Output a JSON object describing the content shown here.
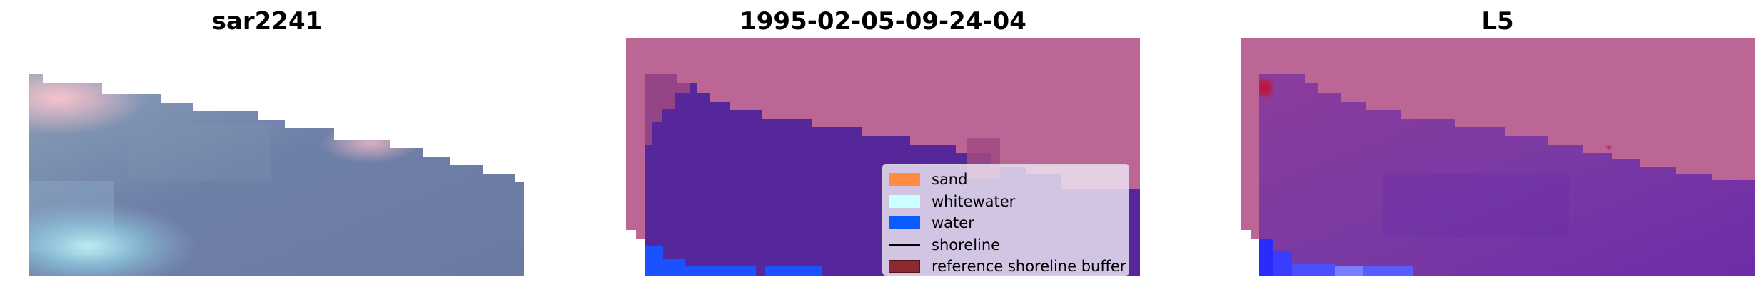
{
  "panels": [
    {
      "id": "rgb",
      "title": "sar2241"
    },
    {
      "id": "classification",
      "title": "1995-02-05-09-24-04"
    },
    {
      "id": "index",
      "title": "L5"
    }
  ],
  "legend": {
    "items": [
      {
        "label": "sand",
        "color": "#ff8c42",
        "kind": "patch"
      },
      {
        "label": "whitewater",
        "color": "#ccffff",
        "kind": "patch"
      },
      {
        "label": "water",
        "color": "#0b5cff",
        "kind": "patch"
      },
      {
        "label": "shoreline",
        "color": "#000000",
        "kind": "line"
      },
      {
        "label": "reference shoreline buffer",
        "color": "#8b2a33",
        "kind": "patch"
      }
    ]
  },
  "colors": {
    "reference_buffer_overlay": "#bb6694",
    "water_class": "#56279a",
    "water_blue": "#1a52ff",
    "rgb_base": "#6f7fa6",
    "index_base": "#7a3aa3",
    "index_hot": "#c4103e"
  }
}
